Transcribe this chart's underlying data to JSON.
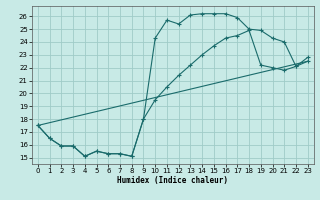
{
  "xlabel": "Humidex (Indice chaleur)",
  "background_color": "#c8eae6",
  "grid_color": "#a0ccc8",
  "line_color": "#1a6b6b",
  "xlim": [
    -0.5,
    23.5
  ],
  "ylim": [
    14.5,
    26.8
  ],
  "xticks": [
    0,
    1,
    2,
    3,
    4,
    5,
    6,
    7,
    8,
    9,
    10,
    11,
    12,
    13,
    14,
    15,
    16,
    17,
    18,
    19,
    20,
    21,
    22,
    23
  ],
  "yticks": [
    15,
    16,
    17,
    18,
    19,
    20,
    21,
    22,
    23,
    24,
    25,
    26
  ],
  "curve1_x": [
    0,
    1,
    2,
    3,
    4,
    5,
    6,
    7,
    8,
    9,
    10,
    11,
    12,
    13,
    14,
    15,
    16,
    17,
    18,
    19,
    20,
    21,
    22,
    23
  ],
  "curve1_y": [
    17.5,
    16.5,
    15.9,
    15.9,
    15.1,
    15.5,
    15.3,
    15.3,
    15.1,
    18.0,
    24.3,
    25.7,
    25.4,
    26.1,
    26.2,
    26.2,
    26.2,
    25.9,
    25.0,
    24.9,
    24.3,
    24.0,
    22.1,
    22.8
  ],
  "curve2_x": [
    0,
    23
  ],
  "curve2_y": [
    17.5,
    22.5
  ],
  "curve3_x": [
    0,
    1,
    2,
    3,
    4,
    5,
    6,
    7,
    8,
    9,
    10,
    11,
    12,
    13,
    14,
    15,
    16,
    17,
    18,
    19,
    20,
    21,
    22,
    23
  ],
  "curve3_y": [
    17.5,
    16.5,
    15.9,
    15.9,
    15.1,
    15.5,
    15.3,
    15.3,
    15.1,
    18.0,
    19.5,
    20.5,
    21.4,
    22.2,
    23.0,
    23.7,
    24.3,
    24.5,
    24.9,
    22.2,
    22.0,
    21.8,
    22.1,
    22.5
  ]
}
